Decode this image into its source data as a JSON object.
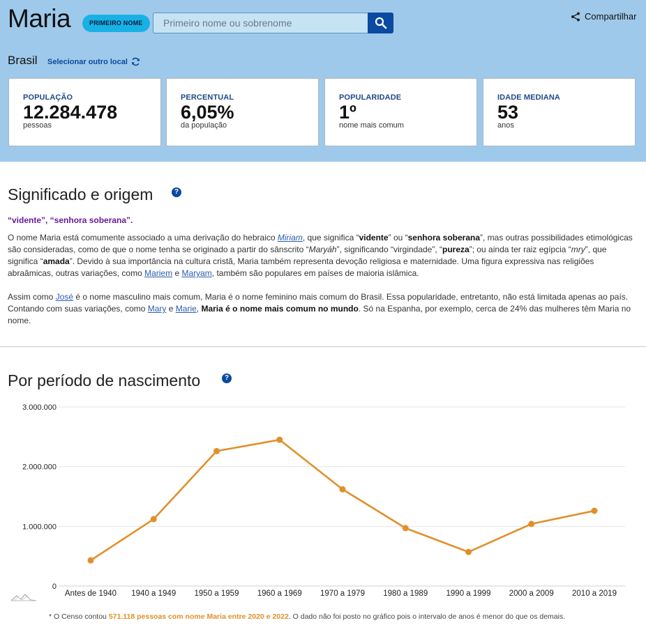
{
  "header": {
    "name": "Maria",
    "badge": "PRIMEIRO NOME",
    "search_placeholder": "Primeiro nome ou sobrenome",
    "share_label": "Compartilhar",
    "country": "Brasil",
    "change_location": "Selecionar outro local",
    "bg_color": "#9ec9ea",
    "accent_color": "#0a4aa0"
  },
  "stats": [
    {
      "label": "POPULAÇÃO",
      "value": "12.284.478",
      "sub": "pessoas"
    },
    {
      "label": "PERCENTUAL",
      "value": "6,05%",
      "sub": "da população"
    },
    {
      "label": "POPULARIDADE",
      "value": "1º",
      "sub": "nome mais comum"
    },
    {
      "label": "IDADE MEDIANA",
      "value": "53",
      "sub": "anos"
    }
  ],
  "meaning": {
    "title": "Significado e origem",
    "quote": "“vidente”, “senhora soberana”.",
    "p1": {
      "t1": "O nome Maria está comumente associado a uma derivação do hebraico ",
      "link_miriam": "Miriam",
      "t2": ", que significa “",
      "b_vidente": "vidente",
      "t3": "” ou “",
      "b_senhora": "senhora soberana",
      "t4": "”, mas outras possibilidades etimológicas são consideradas, como de que o nome tenha se originado a partir do sânscrito “",
      "i_maryah": "Maryáh",
      "t5": "”, significando “virgindade”, “",
      "b_pureza": "pureza",
      "t6": "”; ou ainda ter raiz egípcia “",
      "i_mry": "mry",
      "t7": "”, que significa “",
      "b_amada": "amada",
      "t8": "”. Devido à sua importância na cultura cristã, Maria também representa devoção religiosa e maternidade. Uma figura expressiva nas religiões abraâmicas, outras variações, como ",
      "link_mariem": "Mariem",
      "t9": " e ",
      "link_maryam": "Maryam",
      "t10": ", também são populares em países de maioria islâmica."
    },
    "p2": {
      "t1": "Assim como ",
      "link_jose": "José",
      "t2": " é o nome masculino mais comum, Maria é o nome feminino mais comum do Brasil. Essa popularidade, entretanto, não está limitada apenas ao país. Contando com suas variações, como ",
      "link_mary": "Mary",
      "t3": " e ",
      "link_marie": "Marie",
      "t4": ", ",
      "b_mundo": "Maria é o nome mais comum no mundo",
      "t5": ". Só na Espanha, por exemplo, cerca de 24% das mulheres têm Maria no nome."
    }
  },
  "birth_section": {
    "title": "Por período de nascimento"
  },
  "chart_data": {
    "type": "line",
    "categories": [
      "Antes de 1940",
      "1940 a 1949",
      "1950 a 1959",
      "1960 a 1969",
      "1970 a 1979",
      "1980 a 1989",
      "1990 a 1999",
      "2000 a 2009",
      "2010 a 2019"
    ],
    "values": [
      430000,
      1120000,
      2260000,
      2450000,
      1620000,
      970000,
      570000,
      1040000,
      1260000
    ],
    "yticks": [
      0,
      1000000,
      2000000,
      3000000
    ],
    "ytick_labels": [
      "0",
      "1.000.000",
      "2.000.000",
      "3.000.000"
    ],
    "ylim": [
      0,
      3000000
    ],
    "grid": true,
    "line_color": "#e0902a"
  },
  "footnote": {
    "t1": "* O Censo contou ",
    "highlight": "571.118 pessoas com nome Maria entre 2020 e 2022",
    "t2": ". O dado não foi posto no gráfico pois o intervalo de anos é menor do que os demais."
  }
}
